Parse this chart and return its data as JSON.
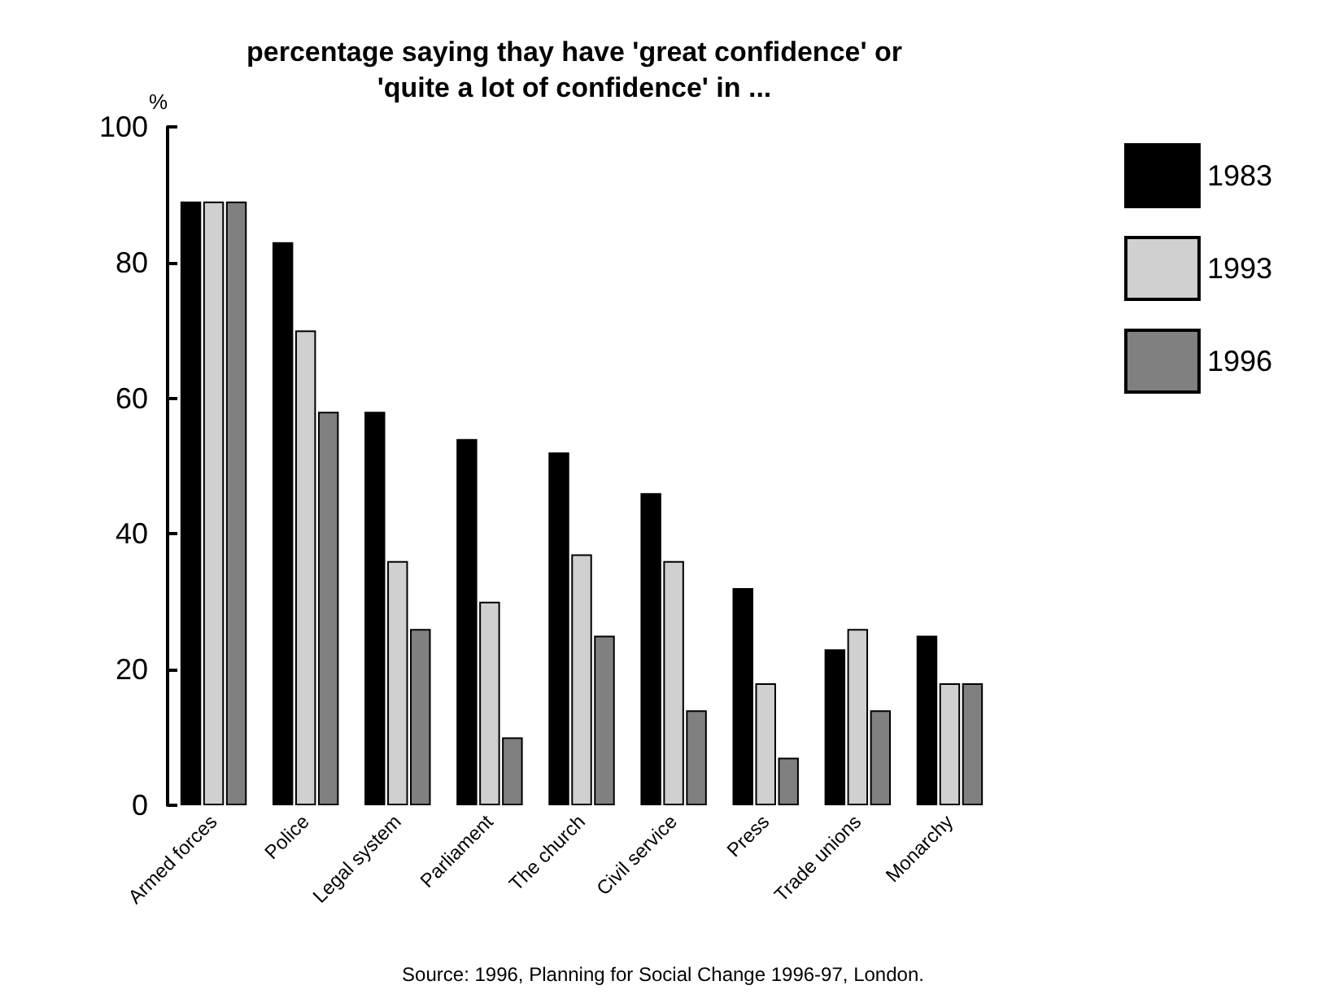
{
  "chart_data": {
    "type": "bar",
    "title": "percentage saying thay have 'great confidence' or\n'quite a lot of confidence' in ...",
    "ylabel": "%",
    "categories": [
      "Armed forces",
      "Police",
      "Legal system",
      "Parliament",
      "The church",
      "Civil service",
      "Press",
      "Trade unions",
      "Monarchy"
    ],
    "series": [
      {
        "name": "1983",
        "color": "#000000",
        "values": [
          89,
          83,
          58,
          54,
          52,
          46,
          32,
          23,
          25
        ]
      },
      {
        "name": "1993",
        "color": "#d0d0d0",
        "values": [
          89,
          70,
          36,
          30,
          37,
          36,
          18,
          26,
          18
        ]
      },
      {
        "name": "1996",
        "color": "#808080",
        "values": [
          89,
          58,
          26,
          10,
          25,
          14,
          7,
          14,
          18
        ]
      }
    ],
    "ylim": [
      0,
      100
    ],
    "yticks": [
      0,
      20,
      40,
      60,
      80,
      100
    ],
    "grid": false,
    "legend": "top right",
    "annotations": [
      "Source: 1996, Planning for Social Change 1996-97, London."
    ]
  }
}
